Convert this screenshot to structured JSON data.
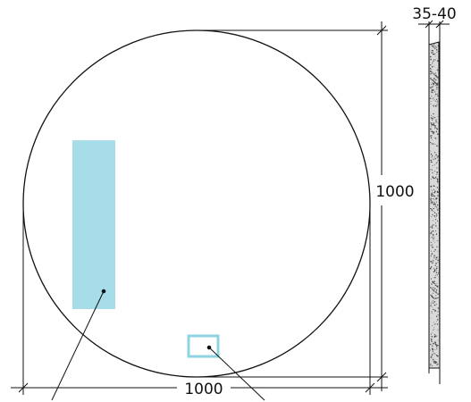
{
  "dimensions": {
    "width_label": "1000",
    "height_label": "1000",
    "depth_label": "35-40"
  },
  "colors": {
    "line": "#111111",
    "led_strip": "#a6dde8",
    "sensor_switch": "#8fd3e3",
    "frame_fill": "#d9d9d9",
    "frame_speckle": "#444444"
  }
}
